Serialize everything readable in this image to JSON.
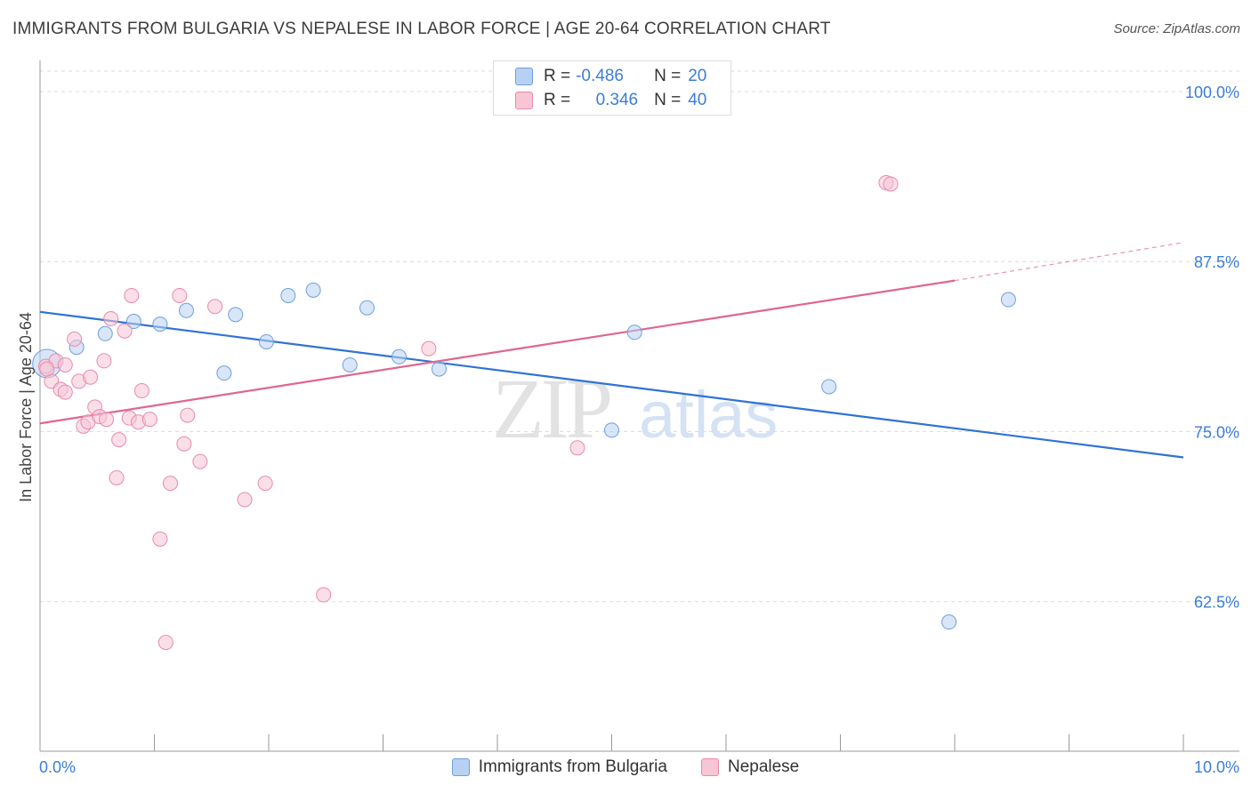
{
  "title": "IMMIGRANTS FROM BULGARIA VS NEPALESE IN LABOR FORCE | AGE 20-64 CORRELATION CHART",
  "source": "Source: ZipAtlas.com",
  "watermark": {
    "zip": "ZIP",
    "atlas": "atlas"
  },
  "stats": [
    {
      "r_label": "R =",
      "r": "-0.486",
      "n_label": "N =",
      "n": "20",
      "color": "#b8d1f3",
      "stroke": "#6d9fe0"
    },
    {
      "r_label": "R =",
      "r": "0.346",
      "n_label": "N =",
      "n": "40",
      "color": "#f8c5d5",
      "stroke": "#e98aaa"
    }
  ],
  "legend": [
    {
      "label": "Immigrants from Bulgaria",
      "color": "#b8d1f3",
      "stroke": "#6d9fe0"
    },
    {
      "label": "Nepalese",
      "color": "#f8c5d5",
      "stroke": "#e98aaa"
    }
  ],
  "chart_data": {
    "type": "scatter",
    "title": "IMMIGRANTS FROM BULGARIA VS NEPALESE IN LABOR FORCE | AGE 20-64 CORRELATION CHART",
    "xlabel": "",
    "ylabel": "In Labor Force | Age 20-64",
    "xlim": [
      0,
      10
    ],
    "ylim": [
      51.5,
      101.5
    ],
    "x_tick_labels": [
      "0.0%",
      "10.0%"
    ],
    "y_ticks": [
      62.5,
      75.0,
      87.5,
      100.0
    ],
    "y_tick_labels": [
      "62.5%",
      "75.0%",
      "87.5%",
      "100.0%"
    ],
    "grid": true,
    "legend_position": "bottom",
    "series": [
      {
        "name": "Immigrants from Bulgaria",
        "color": "#6d9fe0",
        "fill": "#b8d1f3",
        "line_color": "#2f72d6",
        "trend": {
          "x0": 0,
          "y0": 83.8,
          "x1": 10,
          "y1": 73.1
        },
        "points": [
          {
            "x": 0.06,
            "y": 80.0,
            "big": true
          },
          {
            "x": 0.32,
            "y": 81.2
          },
          {
            "x": 0.57,
            "y": 82.2
          },
          {
            "x": 0.82,
            "y": 83.1
          },
          {
            "x": 1.05,
            "y": 82.9
          },
          {
            "x": 1.28,
            "y": 83.9
          },
          {
            "x": 1.61,
            "y": 79.3
          },
          {
            "x": 1.71,
            "y": 83.6
          },
          {
            "x": 1.98,
            "y": 81.6
          },
          {
            "x": 2.17,
            "y": 85.0
          },
          {
            "x": 2.39,
            "y": 85.4
          },
          {
            "x": 2.71,
            "y": 79.9
          },
          {
            "x": 2.86,
            "y": 84.1
          },
          {
            "x": 3.14,
            "y": 80.5
          },
          {
            "x": 3.49,
            "y": 79.6
          },
          {
            "x": 5.0,
            "y": 75.1
          },
          {
            "x": 5.2,
            "y": 82.3
          },
          {
            "x": 6.9,
            "y": 78.3
          },
          {
            "x": 7.95,
            "y": 61.0
          },
          {
            "x": 8.47,
            "y": 84.7
          }
        ]
      },
      {
        "name": "Nepalese",
        "color": "#e98aaa",
        "fill": "#f8c5d5",
        "line_color": "#e0668f",
        "trend": {
          "x0": 0,
          "y0": 75.6,
          "x1": 8.0,
          "y1": 86.1
        },
        "trend_dash": {
          "x0": 8.0,
          "y0": 86.1,
          "x1": 10,
          "y1": 88.9
        },
        "points": [
          {
            "x": 0.05,
            "y": 79.8
          },
          {
            "x": 0.1,
            "y": 78.7
          },
          {
            "x": 0.14,
            "y": 80.2
          },
          {
            "x": 0.18,
            "y": 78.1
          },
          {
            "x": 0.22,
            "y": 79.9
          },
          {
            "x": 0.3,
            "y": 81.8
          },
          {
            "x": 0.34,
            "y": 78.7
          },
          {
            "x": 0.38,
            "y": 75.4
          },
          {
            "x": 0.42,
            "y": 75.7
          },
          {
            "x": 0.44,
            "y": 79.0
          },
          {
            "x": 0.48,
            "y": 76.8
          },
          {
            "x": 0.52,
            "y": 76.1
          },
          {
            "x": 0.56,
            "y": 80.2
          },
          {
            "x": 0.58,
            "y": 75.9
          },
          {
            "x": 0.62,
            "y": 83.3
          },
          {
            "x": 0.67,
            "y": 71.6
          },
          {
            "x": 0.69,
            "y": 74.4
          },
          {
            "x": 0.74,
            "y": 82.4
          },
          {
            "x": 0.78,
            "y": 76.0
          },
          {
            "x": 0.8,
            "y": 85.0
          },
          {
            "x": 0.86,
            "y": 75.7
          },
          {
            "x": 0.89,
            "y": 78.0
          },
          {
            "x": 0.96,
            "y": 75.9
          },
          {
            "x": 1.05,
            "y": 67.1
          },
          {
            "x": 1.1,
            "y": 59.5
          },
          {
            "x": 1.14,
            "y": 71.2
          },
          {
            "x": 1.22,
            "y": 85.0
          },
          {
            "x": 1.26,
            "y": 74.1
          },
          {
            "x": 1.29,
            "y": 76.2
          },
          {
            "x": 1.4,
            "y": 72.8
          },
          {
            "x": 1.53,
            "y": 84.2
          },
          {
            "x": 1.79,
            "y": 70.0
          },
          {
            "x": 1.97,
            "y": 71.2
          },
          {
            "x": 2.48,
            "y": 63.0
          },
          {
            "x": 3.4,
            "y": 81.1
          },
          {
            "x": 4.7,
            "y": 73.8
          },
          {
            "x": 7.4,
            "y": 93.3
          },
          {
            "x": 7.44,
            "y": 93.2
          },
          {
            "x": 0.22,
            "y": 77.9
          },
          {
            "x": 0.06,
            "y": 79.6
          }
        ]
      }
    ]
  }
}
